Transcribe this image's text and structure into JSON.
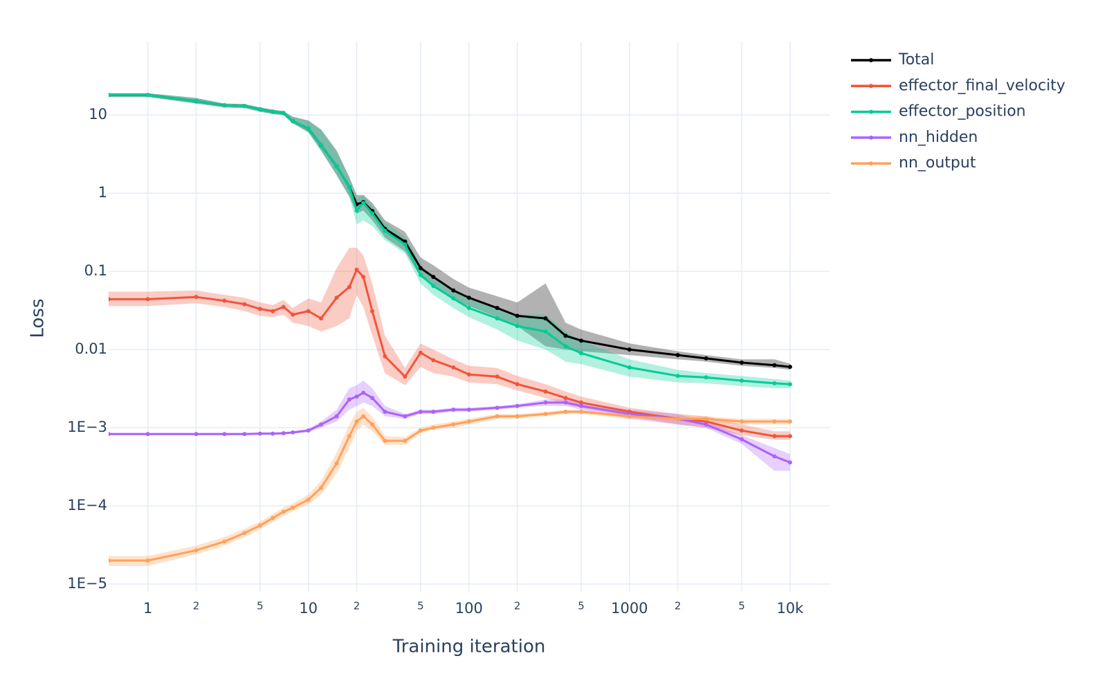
{
  "chart_data": {
    "type": "line",
    "x_label": "Training iteration",
    "y_label": "Loss",
    "xlog": true,
    "ylog": true,
    "grid": true,
    "legend": "right",
    "xlim": [
      0.57,
      17800
    ],
    "ylim": [
      8e-06,
      87
    ],
    "xticks": [
      1,
      2,
      5,
      10,
      {
        "value": 20,
        "label": "2"
      },
      {
        "value": 50,
        "label": "5"
      },
      100,
      {
        "value": 200,
        "label": "2"
      },
      {
        "value": 500,
        "label": "5"
      },
      1000,
      {
        "value": 2000,
        "label": "2"
      },
      {
        "value": 5000,
        "label": "5"
      },
      {
        "value": 10000,
        "label": "10k"
      }
    ],
    "yticks": [
      {
        "value": 1e-05,
        "label": "1E−5"
      },
      {
        "value": 0.0001,
        "label": "1E−4"
      },
      {
        "value": 0.001,
        "label": "1E−3"
      },
      0.01,
      0.1,
      1,
      10
    ],
    "x": [
      0.57,
      1,
      2,
      3,
      4,
      5,
      6,
      7,
      8,
      10,
      12,
      15,
      18,
      20,
      22,
      25,
      30,
      40,
      50,
      60,
      80,
      100,
      150,
      200,
      300,
      400,
      500,
      1000,
      2000,
      3000,
      5000,
      8000,
      10000
    ],
    "series": [
      {
        "name": "Total",
        "color": "#000000",
        "band_color": "#000000",
        "values": [
          18,
          18,
          15,
          13.3,
          13,
          11.8,
          11,
          10.6,
          8.3,
          6.7,
          4.1,
          2.2,
          1.2,
          0.72,
          0.77,
          0.59,
          0.35,
          0.24,
          0.11,
          0.085,
          0.057,
          0.046,
          0.034,
          0.027,
          0.025,
          0.015,
          0.013,
          0.01,
          0.0085,
          0.0077,
          0.0068,
          0.0063,
          0.006
        ],
        "lower": [
          17,
          17,
          14,
          12.5,
          12.3,
          11,
          10.3,
          10,
          7.8,
          6,
          3.5,
          1.7,
          0.9,
          0.55,
          0.6,
          0.45,
          0.27,
          0.18,
          0.085,
          0.065,
          0.043,
          0.036,
          0.026,
          0.02,
          0.011,
          0.01,
          0.0095,
          0.0085,
          0.0075,
          0.007,
          0.0062,
          0.0058,
          0.0055
        ],
        "upper": [
          19,
          19,
          16.5,
          14,
          13.8,
          12.5,
          11.7,
          11.2,
          9.5,
          8.5,
          6.5,
          3.5,
          1.6,
          0.95,
          0.95,
          0.75,
          0.45,
          0.32,
          0.15,
          0.12,
          0.08,
          0.062,
          0.048,
          0.04,
          0.07,
          0.022,
          0.018,
          0.012,
          0.0095,
          0.0085,
          0.0075,
          0.0075,
          0.0066
        ]
      },
      {
        "name": "effector_final_velocity",
        "color": "#EF553B",
        "band_color": "#EF553B",
        "values": [
          0.044,
          0.044,
          0.047,
          0.042,
          0.038,
          0.033,
          0.031,
          0.035,
          0.028,
          0.031,
          0.025,
          0.046,
          0.063,
          0.105,
          0.085,
          0.031,
          0.0082,
          0.0045,
          0.0091,
          0.0073,
          0.0059,
          0.0048,
          0.0045,
          0.0036,
          0.0029,
          0.0024,
          0.0021,
          0.0016,
          0.0013,
          0.0012,
          0.00092,
          0.00078,
          0.00078
        ],
        "lower": [
          0.036,
          0.036,
          0.039,
          0.035,
          0.031,
          0.027,
          0.026,
          0.028,
          0.022,
          0.02,
          0.017,
          0.02,
          0.025,
          0.05,
          0.035,
          0.015,
          0.005,
          0.0035,
          0.006,
          0.005,
          0.0045,
          0.0038,
          0.0036,
          0.003,
          0.0024,
          0.002,
          0.0018,
          0.0014,
          0.0011,
          0.001,
          0.0008,
          0.0007,
          0.0007
        ],
        "upper": [
          0.055,
          0.055,
          0.057,
          0.05,
          0.046,
          0.04,
          0.037,
          0.043,
          0.034,
          0.045,
          0.04,
          0.11,
          0.2,
          0.2,
          0.16,
          0.07,
          0.015,
          0.0058,
          0.012,
          0.01,
          0.0075,
          0.0062,
          0.0058,
          0.0046,
          0.0036,
          0.0029,
          0.0025,
          0.0018,
          0.0015,
          0.0014,
          0.0011,
          0.0009,
          0.0009
        ]
      },
      {
        "name": "effector_position",
        "color": "#00CC96",
        "band_color": "#00CC96",
        "values": [
          18,
          18,
          15,
          13.3,
          13,
          11.8,
          11,
          10.6,
          8.3,
          6.7,
          4.1,
          2.2,
          1.2,
          0.6,
          0.75,
          0.55,
          0.33,
          0.22,
          0.09,
          0.065,
          0.045,
          0.034,
          0.025,
          0.02,
          0.017,
          0.011,
          0.009,
          0.0059,
          0.0046,
          0.0044,
          0.004,
          0.0037,
          0.0036
        ],
        "lower": [
          17,
          17,
          14,
          12.5,
          12.3,
          11,
          10.3,
          10,
          7.8,
          6,
          3.5,
          1.7,
          0.9,
          0.4,
          0.45,
          0.38,
          0.25,
          0.17,
          0.07,
          0.05,
          0.034,
          0.026,
          0.018,
          0.013,
          0.01,
          0.007,
          0.0065,
          0.0045,
          0.0038,
          0.0037,
          0.0034,
          0.0032,
          0.0032
        ],
        "upper": [
          19,
          19,
          16.5,
          14,
          13.8,
          12.5,
          11.7,
          11.2,
          9.5,
          8.5,
          6.5,
          3.5,
          1.6,
          0.85,
          0.95,
          0.7,
          0.42,
          0.28,
          0.12,
          0.085,
          0.06,
          0.045,
          0.034,
          0.028,
          0.028,
          0.017,
          0.013,
          0.0075,
          0.0055,
          0.005,
          0.0046,
          0.0042,
          0.004
        ]
      },
      {
        "name": "nn_hidden",
        "color": "#AB63FA",
        "band_color": "#AB63FA",
        "values": [
          0.00083,
          0.00083,
          0.00083,
          0.00083,
          0.00083,
          0.00084,
          0.00084,
          0.00085,
          0.00087,
          0.00092,
          0.0011,
          0.0014,
          0.0023,
          0.0025,
          0.0028,
          0.0024,
          0.0016,
          0.0014,
          0.0016,
          0.0016,
          0.0017,
          0.0017,
          0.0018,
          0.0019,
          0.0021,
          0.0021,
          0.0019,
          0.0015,
          0.0013,
          0.0011,
          0.00071,
          0.00043,
          0.00036
        ],
        "lower": [
          0.0008,
          0.0008,
          0.0008,
          0.0008,
          0.0008,
          0.00081,
          0.00081,
          0.00082,
          0.00084,
          0.00088,
          0.001,
          0.0012,
          0.0017,
          0.0019,
          0.0021,
          0.0019,
          0.0014,
          0.0013,
          0.0015,
          0.0015,
          0.0016,
          0.0016,
          0.0017,
          0.0018,
          0.0019,
          0.0019,
          0.0017,
          0.0013,
          0.0011,
          0.001,
          0.00062,
          0.00028,
          0.00028
        ],
        "upper": [
          0.00086,
          0.00086,
          0.00086,
          0.00086,
          0.00086,
          0.00087,
          0.00087,
          0.00088,
          0.0009,
          0.00097,
          0.0012,
          0.0017,
          0.0032,
          0.0035,
          0.004,
          0.0032,
          0.0019,
          0.0015,
          0.0017,
          0.0017,
          0.0018,
          0.0018,
          0.0019,
          0.002,
          0.0023,
          0.0023,
          0.0021,
          0.0017,
          0.0015,
          0.0012,
          0.0008,
          0.00055,
          0.00046
        ]
      },
      {
        "name": "nn_output",
        "color": "#FFA15A",
        "band_color": "#FFA15A",
        "values": [
          2e-05,
          2e-05,
          2.7e-05,
          3.5e-05,
          4.5e-05,
          5.6e-05,
          7e-05,
          8.4e-05,
          9.5e-05,
          0.00012,
          0.00017,
          0.00035,
          0.00078,
          0.0012,
          0.0014,
          0.0011,
          0.00068,
          0.00068,
          0.00092,
          0.001,
          0.0011,
          0.0012,
          0.0014,
          0.0014,
          0.0015,
          0.0016,
          0.0016,
          0.0014,
          0.0013,
          0.0013,
          0.0012,
          0.0012,
          0.0012
        ],
        "lower": [
          1.7e-05,
          1.7e-05,
          2.4e-05,
          3.1e-05,
          4e-05,
          5e-05,
          6.2e-05,
          7.5e-05,
          8.5e-05,
          0.000105,
          0.00014,
          0.00026,
          0.00055,
          0.0009,
          0.0011,
          0.0009,
          0.0006,
          0.0006,
          0.00085,
          0.00095,
          0.001,
          0.0011,
          0.0013,
          0.0013,
          0.0014,
          0.0015,
          0.0015,
          0.0013,
          0.0012,
          0.0012,
          0.0011,
          0.0011,
          0.0011
        ],
        "upper": [
          2.3e-05,
          2.3e-05,
          3.1e-05,
          4e-05,
          5.1e-05,
          6.3e-05,
          7.9e-05,
          9.5e-05,
          0.000107,
          0.00014,
          0.00021,
          0.00048,
          0.0011,
          0.0016,
          0.0018,
          0.0014,
          0.00078,
          0.00076,
          0.001,
          0.0011,
          0.0012,
          0.0013,
          0.0015,
          0.0015,
          0.0016,
          0.0017,
          0.0017,
          0.0015,
          0.0014,
          0.0014,
          0.0013,
          0.0013,
          0.0013
        ]
      }
    ]
  }
}
